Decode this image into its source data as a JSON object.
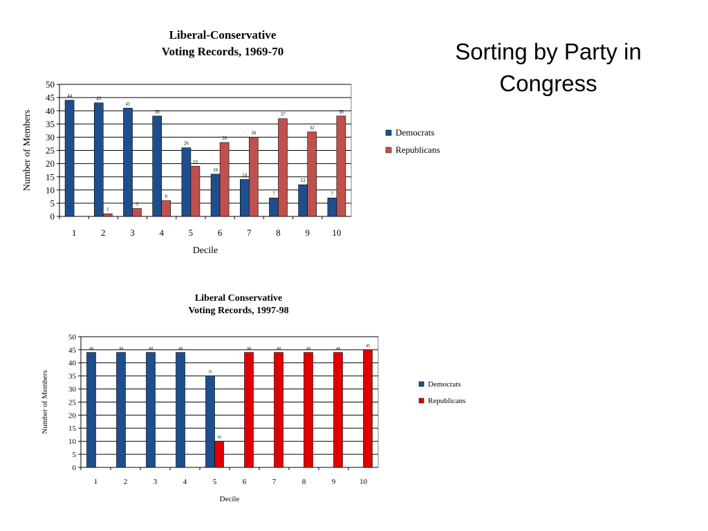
{
  "slide": {
    "title": "Sorting by Party in Congress"
  },
  "chart_data": [
    {
      "type": "bar",
      "title": "Liberal-Conservative\nVoting Records, 1969-70",
      "xlabel": "Decile",
      "ylabel": "Number of Members",
      "ylim": [
        0,
        50
      ],
      "yticks": [
        0,
        5,
        10,
        15,
        20,
        25,
        30,
        35,
        40,
        45,
        50
      ],
      "categories": [
        "1",
        "2",
        "3",
        "4",
        "5",
        "6",
        "7",
        "8",
        "9",
        "10"
      ],
      "series": [
        {
          "name": "Democrats",
          "color": "#1F4E8C",
          "values": [
            44,
            43,
            41,
            38,
            26,
            16,
            14,
            7,
            12,
            7
          ]
        },
        {
          "name": "Republicans",
          "color": "#C0504D",
          "values": [
            null,
            1,
            3,
            6,
            19,
            28,
            30,
            37,
            32,
            38
          ]
        }
      ],
      "grid": true,
      "legend": "right"
    },
    {
      "type": "bar",
      "title": "Liberal Conservative\nVoting Records, 1997-98",
      "xlabel": "Decile",
      "ylabel": "Number of Members",
      "ylim": [
        0,
        50
      ],
      "yticks": [
        0,
        5,
        10,
        15,
        20,
        25,
        30,
        35,
        40,
        45,
        50
      ],
      "categories": [
        "1",
        "2",
        "3",
        "4",
        "5",
        "6",
        "7",
        "8",
        "9",
        "10"
      ],
      "series": [
        {
          "name": "Democrats",
          "color": "#1F4E8C",
          "values": [
            44,
            44,
            44,
            44,
            35,
            null,
            null,
            null,
            null,
            null
          ]
        },
        {
          "name": "Republicans",
          "color": "#E00000",
          "values": [
            null,
            null,
            null,
            null,
            10,
            44,
            44,
            44,
            44,
            45
          ]
        }
      ],
      "grid": true,
      "legend": "right"
    }
  ]
}
